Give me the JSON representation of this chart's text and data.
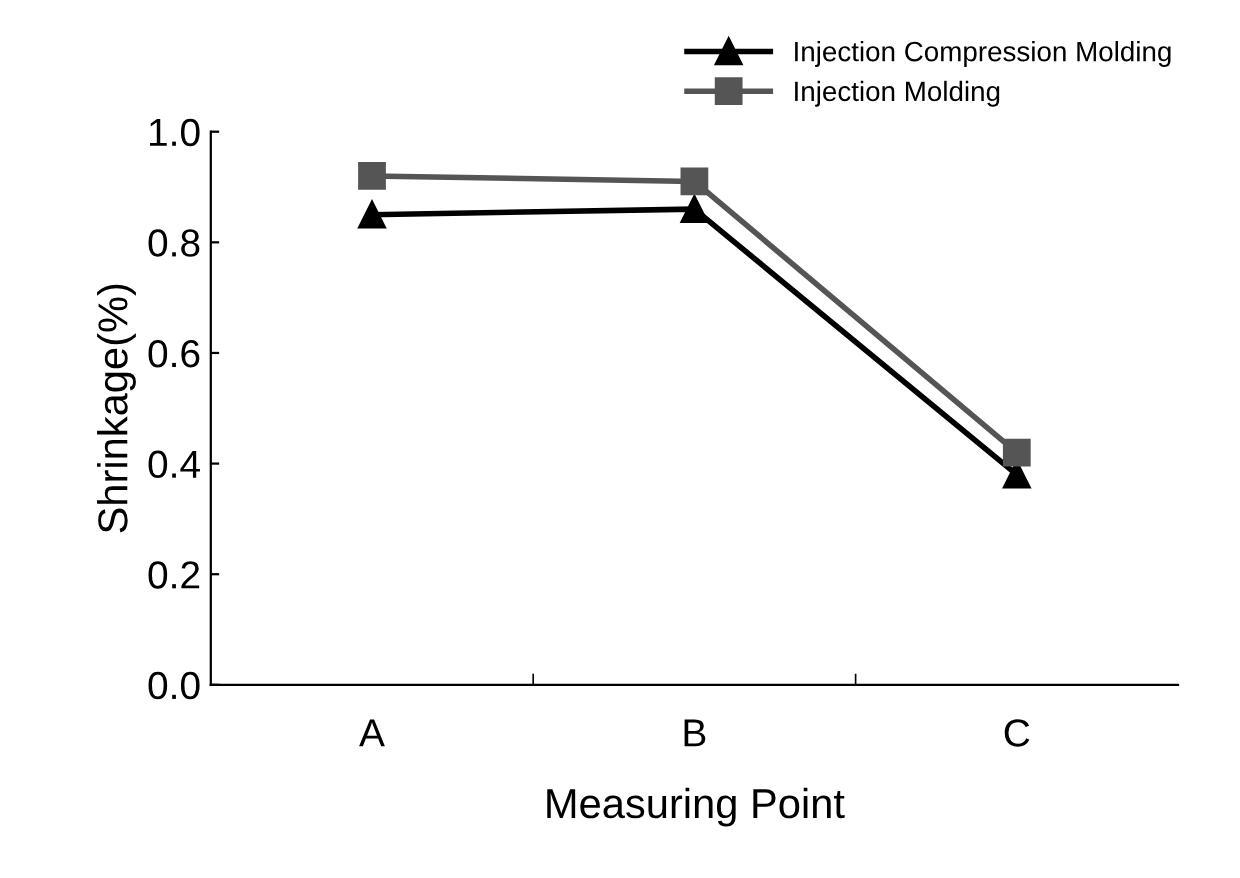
{
  "chart_data": {
    "type": "line",
    "xlabel": "Measuring Point",
    "ylabel": "Shrinkage(%)",
    "categories": [
      "A",
      "B",
      "C"
    ],
    "series": [
      {
        "name": "Injection Compression Molding",
        "color": "#000000",
        "marker": "triangle",
        "values": [
          0.85,
          0.86,
          0.38
        ]
      },
      {
        "name": "Injection Molding",
        "color": "#555555",
        "marker": "square",
        "values": [
          0.92,
          0.91,
          0.42
        ]
      }
    ],
    "ylim": [
      0.0,
      1.0
    ],
    "yticks": [
      {
        "value": 0.0,
        "label": "0.0"
      },
      0.2,
      0.4,
      0.6,
      0.8,
      {
        "value": 1.0,
        "label": "1.0"
      }
    ],
    "grid": false,
    "legend": "top right",
    "line_style": "solid"
  }
}
